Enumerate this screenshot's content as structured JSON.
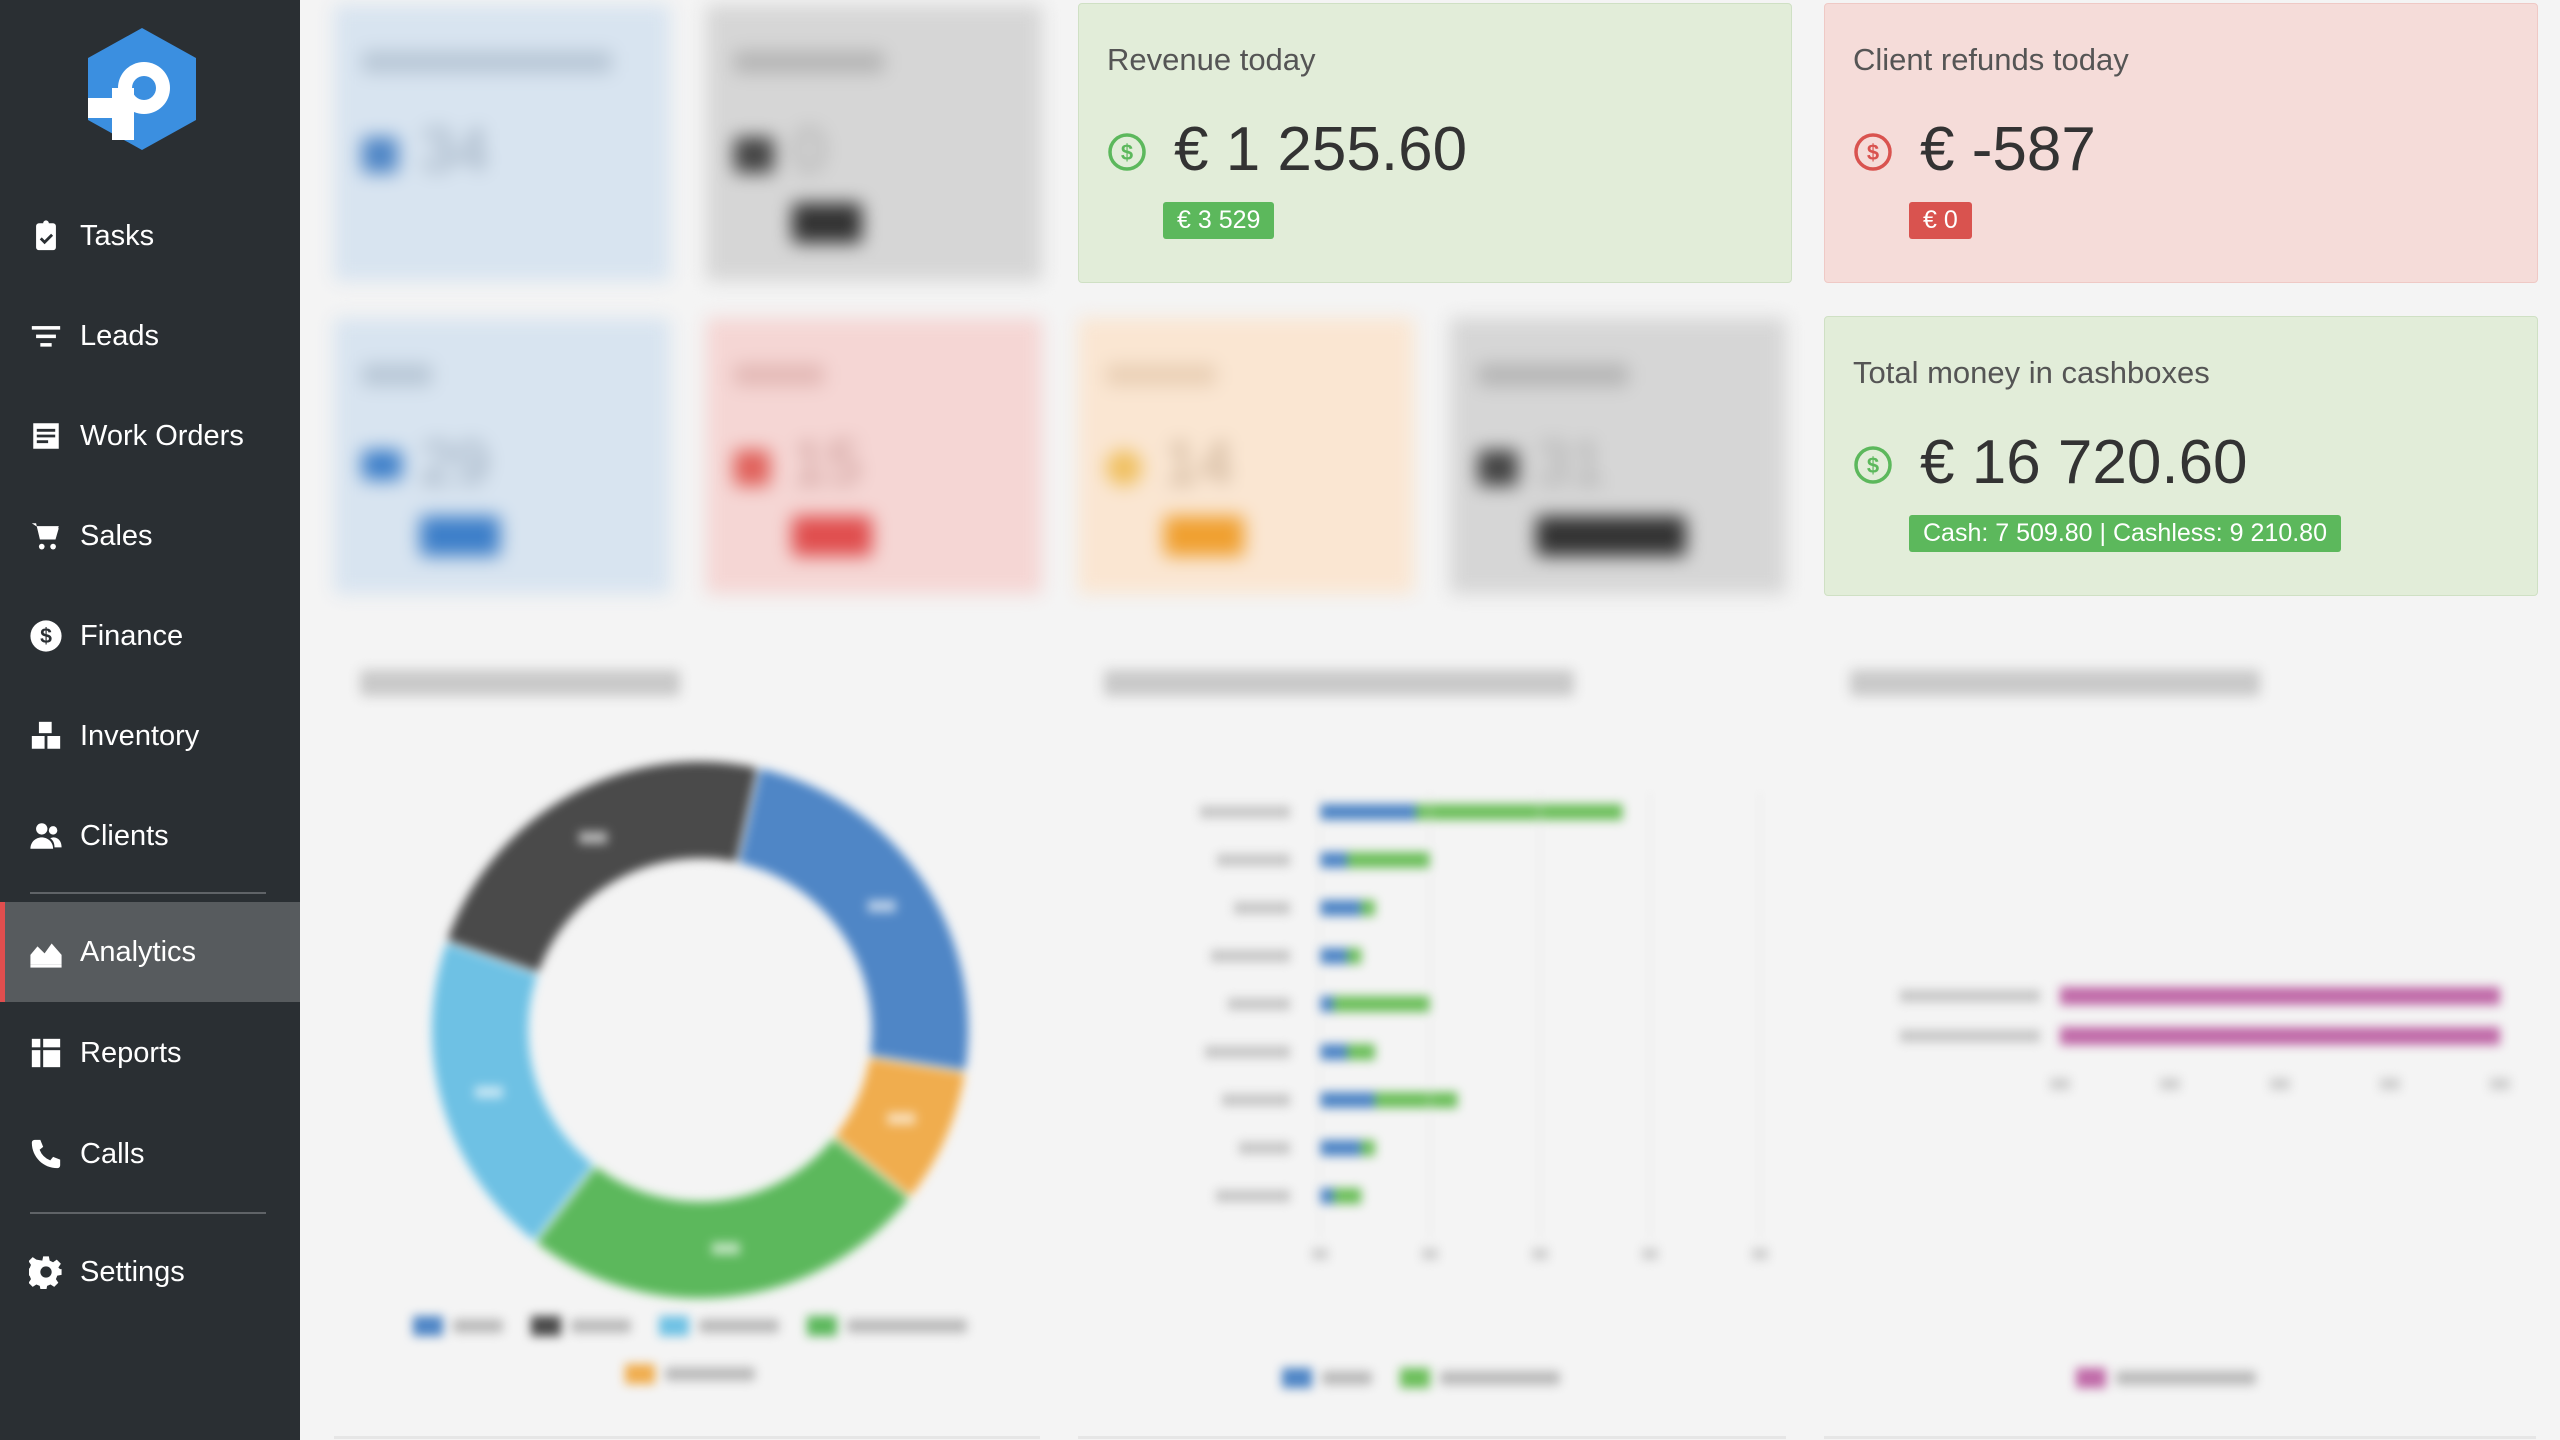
{
  "sidebar": {
    "items": [
      {
        "label": "Tasks",
        "icon": "clipboard-check-icon"
      },
      {
        "label": "Leads",
        "icon": "funnel-icon"
      },
      {
        "label": "Work Orders",
        "icon": "work-order-icon"
      },
      {
        "label": "Sales",
        "icon": "cart-icon"
      },
      {
        "label": "Finance",
        "icon": "dollar-circle-icon"
      },
      {
        "label": "Inventory",
        "icon": "boxes-icon"
      },
      {
        "label": "Clients",
        "icon": "users-icon"
      },
      {
        "label": "Analytics",
        "icon": "area-chart-icon",
        "active": true
      },
      {
        "label": "Reports",
        "icon": "table-icon"
      },
      {
        "label": "Calls",
        "icon": "phone-icon"
      },
      {
        "label": "Settings",
        "icon": "gear-icon"
      }
    ]
  },
  "cards": {
    "work_orders_today": {
      "value": "34"
    },
    "sales_today": {
      "value": "0"
    },
    "revenue_today": {
      "title": "Revenue today",
      "value": "€ 1 255.60",
      "badge": "€ 3 529",
      "accent": "#5cb85c"
    },
    "client_refunds_today": {
      "title": "Client refunds today",
      "value": "€ -587",
      "badge": "€ 0",
      "accent": "#d9534f"
    },
    "new": {
      "value": "29"
    },
    "urgent": {
      "value": "15"
    },
    "overdue": {
      "value": "14"
    },
    "receivables": {
      "value": "31"
    },
    "total_cashboxes": {
      "title": "Total money in cashboxes",
      "value": "€ 16 720.60",
      "badge": "Cash: 7 509.80 | Cashless: 9 210.80",
      "accent": "#5cb85c"
    }
  },
  "charts": {
    "donut": {
      "slices": [
        {
          "value": 29,
          "color": "#4f86c6"
        },
        {
          "value": 10,
          "color": "#f0ad4e"
        },
        {
          "value": 30,
          "color": "#5cb85c"
        },
        {
          "value": 24,
          "color": "#6ec1e4"
        },
        {
          "value": 28,
          "color": "#4a4a4a"
        }
      ]
    },
    "specialists": {
      "rows": [
        {
          "blue": 3.5,
          "green": 7.5
        },
        {
          "blue": 1.0,
          "green": 3.0
        },
        {
          "blue": 1.5,
          "green": 0.5
        },
        {
          "blue": 1.0,
          "green": 0.5
        },
        {
          "blue": 0.5,
          "green": 3.5
        },
        {
          "blue": 1.0,
          "green": 1.0
        },
        {
          "blue": 2.0,
          "green": 3.0
        },
        {
          "blue": 1.5,
          "green": 0.5
        },
        {
          "blue": 0.5,
          "green": 1.0
        }
      ],
      "max": 16,
      "colors": {
        "blue": "#4f86c6",
        "green": "#6cbf5b"
      }
    },
    "lost": {
      "rows": [
        {
          "value": 1
        },
        {
          "value": 1
        }
      ],
      "max": 1,
      "color": "#c06aa8"
    }
  }
}
